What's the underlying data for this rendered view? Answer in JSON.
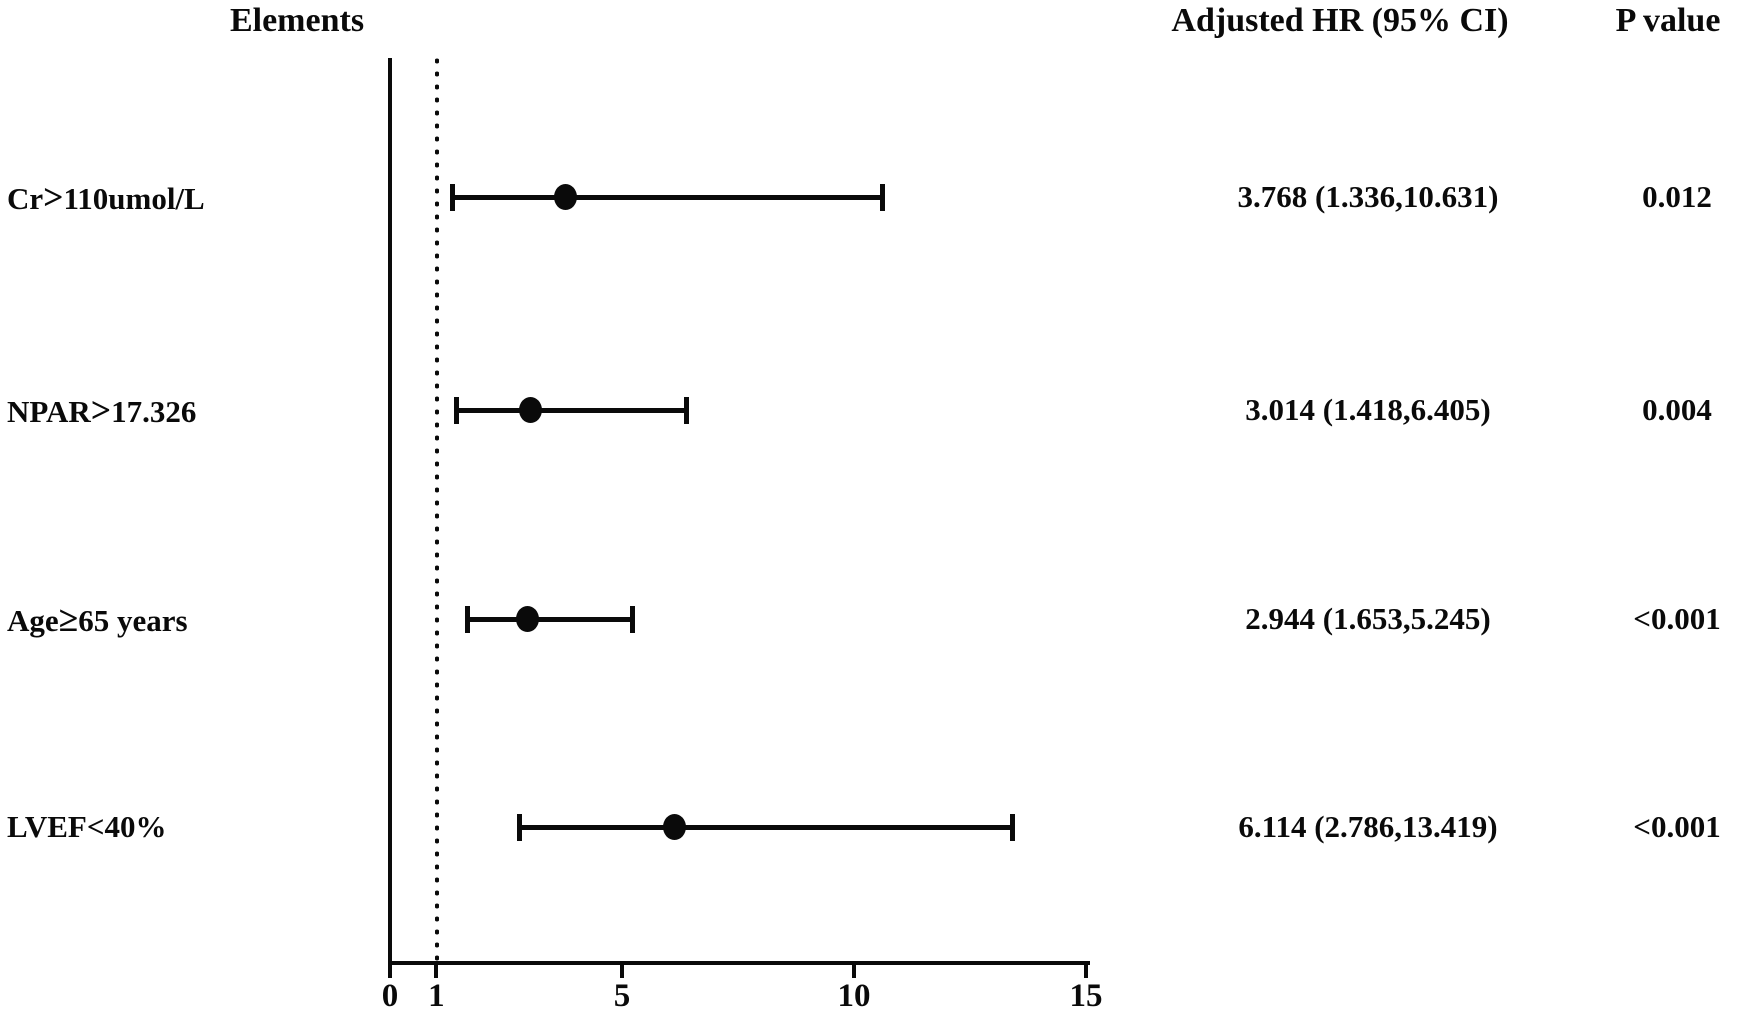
{
  "chart_data": {
    "type": "forest-plot",
    "headers": {
      "elements": "Elements",
      "hr_ci": "Adjusted HR (95% CI)",
      "p_value": "P value"
    },
    "rows": [
      {
        "label": "Cr>110umol/L",
        "hr": 3.768,
        "ci_low": 1.336,
        "ci_high": 10.631,
        "hr_text": "3.768 (1.336,10.631)",
        "p_text": "0.012"
      },
      {
        "label": "NPAR>17.326",
        "hr": 3.014,
        "ci_low": 1.418,
        "ci_high": 6.405,
        "hr_text": "3.014 (1.418,6.405)",
        "p_text": "0.004"
      },
      {
        "label": "Age≥65 years",
        "hr": 2.944,
        "ci_low": 1.653,
        "ci_high": 5.245,
        "hr_text": "2.944 (1.653,5.245)",
        "p_text": "<0.001"
      },
      {
        "label": "LVEF<40%",
        "hr": 6.114,
        "ci_low": 2.786,
        "ci_high": 13.419,
        "hr_text": "6.114 (2.786,13.419)",
        "p_text": "<0.001"
      }
    ],
    "x_axis": {
      "tick_values": [
        0,
        1,
        5,
        10,
        15
      ],
      "tick_labels": [
        "0",
        "1",
        "5",
        "10",
        "15"
      ],
      "range": [
        0,
        15
      ],
      "reference_line_value": 1
    },
    "legend": "none",
    "grid": "off",
    "colors": {
      "foreground": "#0a0a0a",
      "background": "#ffffff"
    }
  }
}
